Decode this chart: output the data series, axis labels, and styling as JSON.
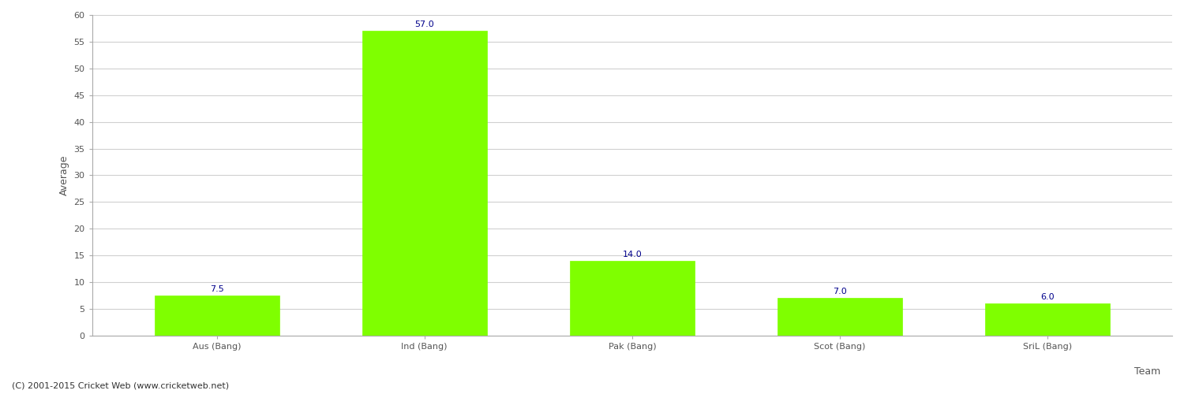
{
  "categories": [
    "Aus (Bang)",
    "Ind (Bang)",
    "Pak (Bang)",
    "Scot (Bang)",
    "SriL (Bang)"
  ],
  "values": [
    7.5,
    57.0,
    14.0,
    7.0,
    6.0
  ],
  "bar_color": "#7fff00",
  "bar_edge_color": "#7fff00",
  "value_color": "#00008b",
  "value_fontsize": 8,
  "ylabel": "Average",
  "xlabel": "Team",
  "ylim": [
    0,
    60
  ],
  "yticks": [
    0,
    5,
    10,
    15,
    20,
    25,
    30,
    35,
    40,
    45,
    50,
    55,
    60
  ],
  "grid_color": "#d0d0d0",
  "background_color": "#ffffff",
  "axes_background": "#ffffff",
  "footer_text": "(C) 2001-2015 Cricket Web (www.cricketweb.net)",
  "footer_fontsize": 8,
  "footer_color": "#333333",
  "tick_label_fontsize": 8,
  "axis_label_fontsize": 9,
  "bar_width": 0.6
}
